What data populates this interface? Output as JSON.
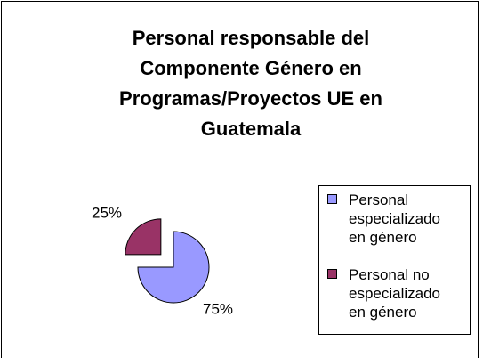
{
  "chart_data": {
    "type": "pie",
    "title": [
      "Personal responsable del",
      "Componente Género en",
      "Programas/Proyectos UE en",
      "Guatemala"
    ],
    "categories": [
      "Personal especializado en género",
      "Personal no especializado en género"
    ],
    "values": [
      75,
      25
    ],
    "value_labels": [
      "75%",
      "25%"
    ],
    "colors": [
      "#9999ff",
      "#993366"
    ],
    "legend": "right"
  }
}
